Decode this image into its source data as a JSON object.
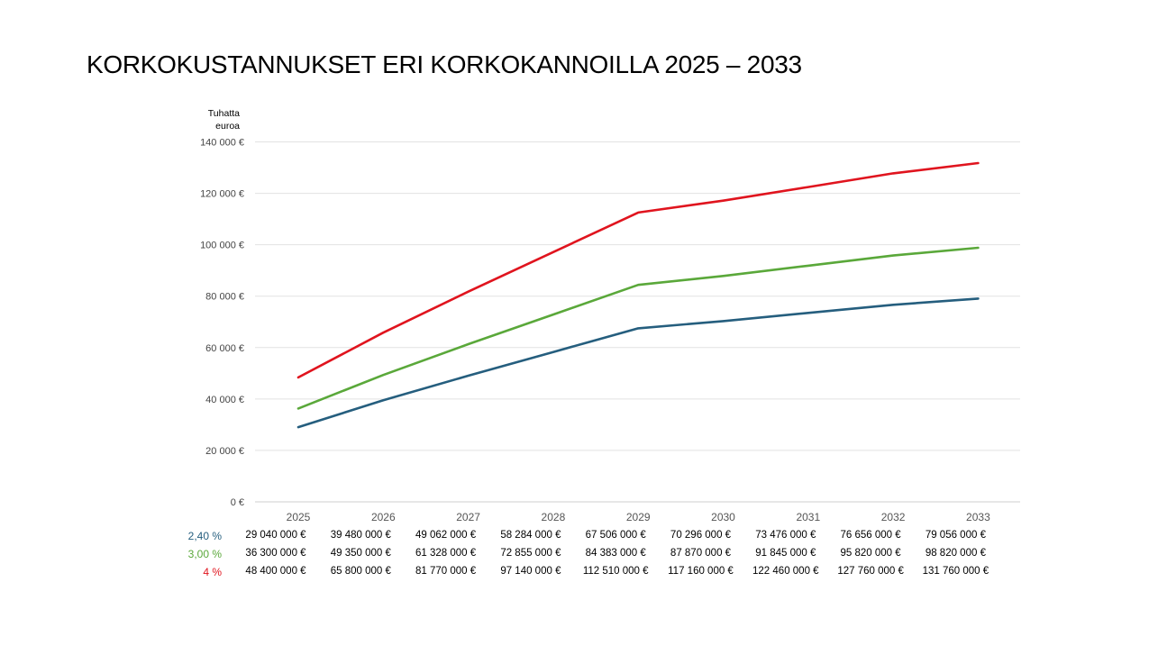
{
  "chart_data": {
    "type": "line",
    "title": "KORKOKUSTANNUKSET ERI KORKOKANNOILLA 2025 – 2033",
    "ylabel": "Tuhatta euroa",
    "xlabel": "",
    "x": [
      "2025",
      "2026",
      "2027",
      "2028",
      "2029",
      "2030",
      "2031",
      "2032",
      "2033"
    ],
    "ylim": [
      0,
      140000
    ],
    "yticks": [
      0,
      20000,
      40000,
      60000,
      80000,
      100000,
      120000,
      140000
    ],
    "ytick_labels": [
      "0 €",
      "20 000 €",
      "40 000 €",
      "60 000 €",
      "80 000 €",
      "100 000 €",
      "120 000 €",
      "140 000 €"
    ],
    "grid": true,
    "legend": "table-below",
    "series": [
      {
        "name": "2,40 %",
        "color": "#255e7e",
        "values": [
          29040,
          39480,
          49062,
          58284,
          67506,
          70296,
          73476,
          76656,
          79056
        ],
        "labels": [
          "29 040 000 €",
          "39 480 000 €",
          "49 062 000 €",
          "58 284 000 €",
          "67 506 000 €",
          "70 296 000 €",
          "73 476 000 €",
          "76 656 000 €",
          "79 056 000 €"
        ]
      },
      {
        "name": "3,00 %",
        "color": "#5aa83a",
        "values": [
          36300,
          49350,
          61328,
          72855,
          84383,
          87870,
          91845,
          95820,
          98820
        ],
        "labels": [
          "36 300 000 €",
          "49 350 000 €",
          "61 328 000 €",
          "72 855 000 €",
          "84 383 000 €",
          "87 870 000 €",
          "91 845 000 €",
          "95 820 000 €",
          "98 820 000 €"
        ]
      },
      {
        "name": "4 %",
        "color": "#e0141e",
        "values": [
          48400,
          65800,
          81770,
          97140,
          112510,
          117160,
          122460,
          127760,
          131760
        ],
        "labels": [
          "48 400 000 €",
          "65 800 000 €",
          "81 770 000 €",
          "97 140 000 €",
          "112 510 000 €",
          "117 160 000 €",
          "122 460 000 €",
          "127 760 000 €",
          "131 760 000 €"
        ]
      }
    ]
  },
  "unit_label_line1": "Tuhatta",
  "unit_label_line2": "euroa"
}
